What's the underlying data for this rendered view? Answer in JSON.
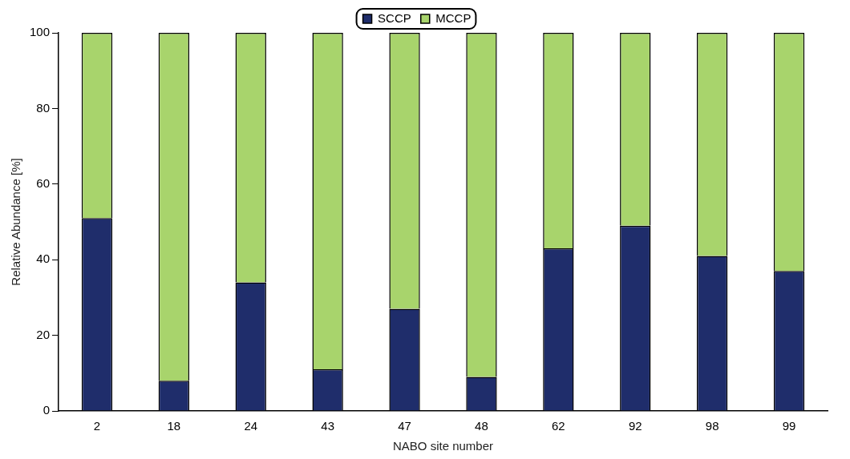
{
  "chart_data": {
    "type": "bar",
    "stacked": true,
    "xlabel": "NABO site number",
    "ylabel": "Relative Abundance [%]",
    "categories": [
      "2",
      "18",
      "24",
      "43",
      "47",
      "48",
      "62",
      "92",
      "98",
      "99"
    ],
    "series": [
      {
        "name": "SCCP",
        "color": "#1f2d6b",
        "values": [
          51,
          8,
          34,
          11,
          27,
          9,
          43,
          49,
          41,
          37
        ]
      },
      {
        "name": "MCCP",
        "color": "#a8d46c",
        "values": [
          49,
          92,
          66,
          89,
          73,
          91,
          57,
          51,
          59,
          63
        ]
      }
    ],
    "ylim": [
      0,
      100
    ],
    "yticks": [
      0,
      20,
      40,
      60,
      80,
      100
    ],
    "grid": false,
    "legend": "top"
  }
}
